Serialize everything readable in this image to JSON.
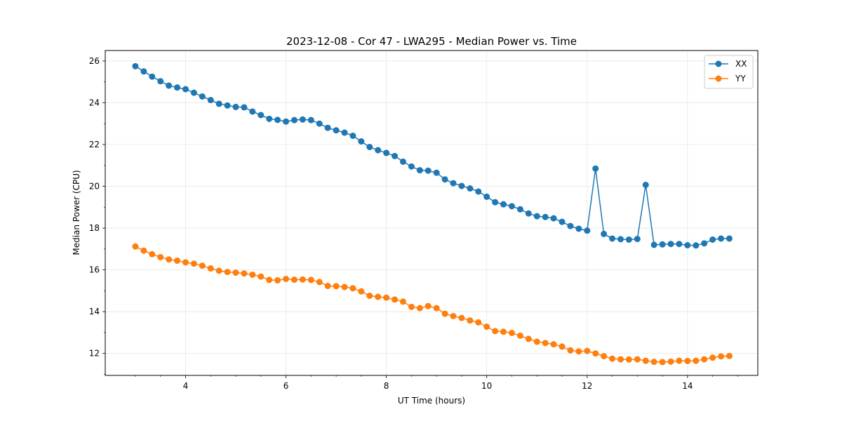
{
  "chart_data": {
    "type": "line",
    "title": "2023-12-08 - Cor 47 - LWA295 - Median Power vs. Time",
    "xlabel": "UT Time (hours)",
    "ylabel": "Median Power (CPU)",
    "xlim": [
      2.4,
      15.4
    ],
    "ylim": [
      10.95,
      26.5
    ],
    "xticks": [
      4,
      6,
      8,
      10,
      12,
      14
    ],
    "xtick_labels": [
      "4",
      "6",
      "8",
      "10",
      "12",
      "14"
    ],
    "yticks": [
      12,
      14,
      16,
      18,
      20,
      22,
      24,
      26
    ],
    "ytick_labels": [
      "12",
      "14",
      "16",
      "18",
      "20",
      "22",
      "24",
      "26"
    ],
    "grid": true,
    "legend_position": "top-right",
    "x": [
      3.0,
      3.167,
      3.333,
      3.5,
      3.667,
      3.833,
      4.0,
      4.167,
      4.333,
      4.5,
      4.667,
      4.833,
      5.0,
      5.167,
      5.333,
      5.5,
      5.667,
      5.833,
      6.0,
      6.167,
      6.333,
      6.5,
      6.667,
      6.833,
      7.0,
      7.167,
      7.333,
      7.5,
      7.667,
      7.833,
      8.0,
      8.167,
      8.333,
      8.5,
      8.667,
      8.833,
      9.0,
      9.167,
      9.333,
      9.5,
      9.667,
      9.833,
      10.0,
      10.167,
      10.333,
      10.5,
      10.667,
      10.833,
      11.0,
      11.167,
      11.333,
      11.5,
      11.667,
      11.833,
      12.0,
      12.167,
      12.333,
      12.5,
      12.667,
      12.833,
      13.0,
      13.167,
      13.333,
      13.5,
      13.667,
      13.833,
      14.0,
      14.167,
      14.333,
      14.5,
      14.667,
      14.833
    ],
    "series": [
      {
        "name": "XX",
        "color": "#1f77b4",
        "values": [
          25.75,
          25.5,
          25.25,
          25.03,
          24.82,
          24.73,
          24.65,
          24.48,
          24.3,
          24.13,
          23.95,
          23.87,
          23.8,
          23.78,
          23.58,
          23.41,
          23.23,
          23.18,
          23.1,
          23.17,
          23.2,
          23.17,
          23.0,
          22.8,
          22.68,
          22.57,
          22.42,
          22.15,
          21.88,
          21.73,
          21.6,
          21.45,
          21.18,
          20.95,
          20.77,
          20.75,
          20.65,
          20.33,
          20.15,
          20.02,
          19.9,
          19.75,
          19.5,
          19.24,
          19.14,
          19.05,
          18.9,
          18.7,
          18.57,
          18.53,
          18.47,
          18.3,
          18.1,
          17.97,
          17.88,
          20.85,
          17.72,
          17.5,
          17.47,
          17.45,
          17.48,
          20.07,
          17.2,
          17.22,
          17.24,
          17.24,
          17.18,
          17.17,
          17.27,
          17.45,
          17.5,
          17.5
        ]
      },
      {
        "name": "YY",
        "color": "#ff7f0e",
        "values": [
          17.12,
          16.92,
          16.75,
          16.61,
          16.5,
          16.44,
          16.36,
          16.3,
          16.2,
          16.07,
          15.96,
          15.9,
          15.87,
          15.83,
          15.77,
          15.68,
          15.52,
          15.5,
          15.57,
          15.53,
          15.54,
          15.52,
          15.42,
          15.23,
          15.22,
          15.18,
          15.12,
          14.97,
          14.76,
          14.71,
          14.67,
          14.58,
          14.48,
          14.23,
          14.17,
          14.27,
          14.17,
          13.9,
          13.79,
          13.7,
          13.58,
          13.49,
          13.28,
          13.07,
          13.04,
          12.98,
          12.85,
          12.7,
          12.56,
          12.5,
          12.44,
          12.33,
          12.15,
          12.1,
          12.12,
          12.0,
          11.87,
          11.75,
          11.72,
          11.71,
          11.72,
          11.65,
          11.6,
          11.59,
          11.61,
          11.65,
          11.64,
          11.65,
          11.72,
          11.8,
          11.86,
          11.88
        ]
      }
    ]
  }
}
